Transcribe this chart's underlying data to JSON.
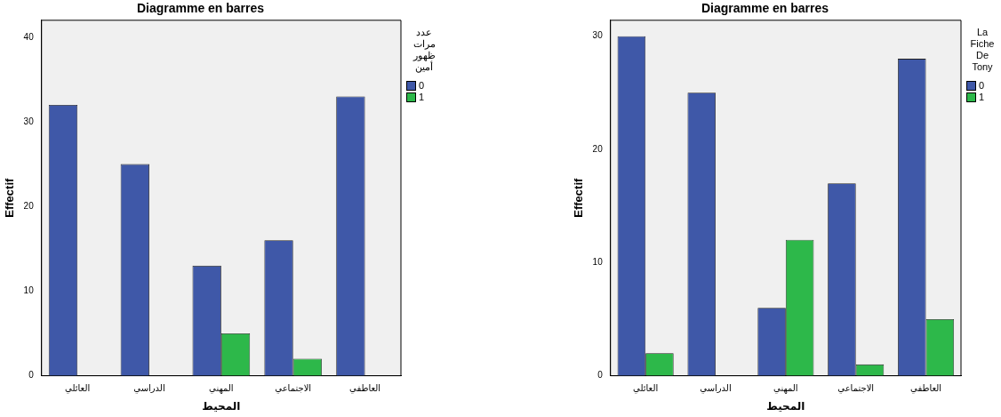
{
  "chart_data": [
    {
      "type": "bar",
      "title": "Diagramme en barres",
      "xlabel": "المحيط",
      "ylabel": "Effectif",
      "legend_title": "عدد مرات ظهور أمين",
      "legend": "right",
      "categories": [
        "العائلي",
        "الدراسي",
        "المهني",
        "الاجتماعي",
        "العاطفي"
      ],
      "series": [
        {
          "name": "0",
          "color": "#3f58a8",
          "values": [
            32,
            25,
            13,
            16,
            33
          ]
        },
        {
          "name": "1",
          "color": "#2db84a",
          "values": [
            0,
            0,
            5,
            2,
            0
          ]
        }
      ],
      "ylim": [
        0,
        42
      ],
      "yticks": [
        0,
        10,
        20,
        30,
        40
      ]
    },
    {
      "type": "bar",
      "title": "Diagramme en barres",
      "xlabel": "المحيط",
      "ylabel": "Effectif",
      "legend_title": "La Fiche De Tony",
      "legend": "right",
      "categories": [
        "العائلي",
        "الدراسي",
        "المهني",
        "الاجتماعي",
        "العاطفي"
      ],
      "series": [
        {
          "name": "0",
          "color": "#3f58a8",
          "values": [
            30,
            25,
            6,
            17,
            28
          ]
        },
        {
          "name": "1",
          "color": "#2db84a",
          "values": [
            2,
            0,
            12,
            1,
            5
          ]
        }
      ],
      "ylim": [
        0,
        31.4
      ],
      "yticks": [
        0,
        10,
        20,
        30
      ]
    }
  ]
}
